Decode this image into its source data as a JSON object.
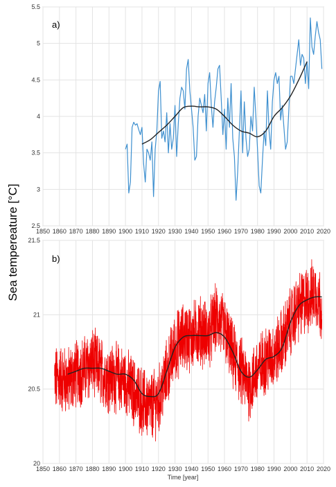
{
  "figure": {
    "ylabel": "Sea tempereature [°C]"
  },
  "colors": {
    "panel_a_series": "#3d8fcf",
    "panel_b_series": "#ee0000",
    "trend": "#222222",
    "grid": "#e3e3e3"
  },
  "chart_data": [
    {
      "type": "line",
      "panel_label": "a)",
      "xlabel": "",
      "ylabel": "",
      "xlim": [
        1850,
        2020
      ],
      "ylim": [
        2.5,
        5.5
      ],
      "xticks": [
        "1850",
        "1860",
        "1870",
        "1880",
        "1890",
        "1900",
        "1910",
        "1920",
        "1930",
        "1940",
        "1950",
        "1960",
        "1970",
        "1980",
        "1990",
        "2000",
        "2010",
        "2020"
      ],
      "yticks": [
        "2.5",
        "3",
        "3.5",
        "4",
        "4.5",
        "5",
        "5.5"
      ],
      "grid": true,
      "series": [
        {
          "x": [
            1900,
            1901,
            1902,
            1903,
            1904,
            1905,
            1906,
            1907,
            1908,
            1909,
            1910,
            1911,
            1912,
            1913,
            1914,
            1915,
            1916,
            1917,
            1918,
            1919,
            1920,
            1921,
            1922,
            1923,
            1924,
            1925,
            1926,
            1927,
            1928,
            1929,
            1930,
            1931,
            1932,
            1933,
            1934,
            1935,
            1936,
            1937,
            1938,
            1939,
            1940,
            1941,
            1942,
            1943,
            1944,
            1945,
            1946,
            1947,
            1948,
            1949,
            1950,
            1951,
            1952,
            1953,
            1954,
            1955,
            1956,
            1957,
            1958,
            1959,
            1960,
            1961,
            1962,
            1963,
            1964,
            1965,
            1966,
            1967,
            1968,
            1969,
            1970,
            1971,
            1972,
            1973,
            1974,
            1975,
            1976,
            1977,
            1978,
            1979,
            1980,
            1981,
            1982,
            1983,
            1984,
            1985,
            1986,
            1987,
            1988,
            1989,
            1990,
            1991,
            1992,
            1993,
            1994,
            1995,
            1996,
            1997,
            1998,
            1999,
            2000,
            2001,
            2002,
            2003,
            2004,
            2005,
            2006,
            2007,
            2008,
            2009,
            2010,
            2011,
            2012,
            2013,
            2014,
            2015,
            2016,
            2017,
            2018,
            2019
          ],
          "values": [
            3.55,
            3.62,
            2.95,
            3.1,
            3.85,
            3.92,
            3.88,
            3.9,
            3.82,
            3.75,
            3.85,
            3.35,
            3.1,
            3.55,
            3.5,
            3.4,
            3.65,
            2.9,
            3.55,
            3.8,
            4.35,
            4.48,
            3.7,
            3.8,
            3.65,
            4.05,
            3.5,
            3.9,
            3.55,
            3.7,
            4.15,
            3.45,
            3.9,
            4.25,
            4.4,
            4.35,
            4.1,
            4.65,
            4.78,
            4.35,
            4.1,
            3.85,
            3.4,
            3.45,
            4.0,
            4.25,
            4.15,
            4.05,
            4.3,
            3.8,
            4.45,
            4.6,
            4.15,
            3.85,
            4.2,
            4.4,
            4.65,
            4.7,
            4.25,
            3.75,
            4.1,
            3.55,
            4.25,
            3.85,
            4.45,
            3.7,
            3.45,
            2.85,
            3.25,
            3.8,
            4.35,
            3.5,
            4.2,
            3.7,
            3.45,
            3.55,
            4.0,
            3.8,
            4.4,
            4.0,
            3.55,
            3.05,
            2.95,
            3.4,
            3.8,
            3.6,
            4.35,
            3.8,
            3.55,
            4.2,
            4.5,
            4.6,
            4.45,
            4.55,
            3.95,
            4.15,
            3.85,
            3.55,
            3.65,
            4.1,
            4.55,
            4.55,
            4.45,
            4.65,
            4.85,
            5.05,
            4.7,
            4.85,
            4.8,
            4.45,
            4.75,
            4.38,
            5.35,
            4.95,
            4.85,
            5.1,
            5.3,
            5.15,
            5.05,
            4.65
          ]
        },
        {
          "name": "trend",
          "x": [
            1910,
            1915,
            1920,
            1925,
            1930,
            1935,
            1940,
            1945,
            1950,
            1955,
            1960,
            1965,
            1970,
            1975,
            1980,
            1985,
            1990,
            1995,
            2000,
            2005,
            2010
          ],
          "values": [
            3.62,
            3.68,
            3.78,
            3.88,
            4.0,
            4.12,
            4.14,
            4.13,
            4.13,
            4.1,
            4.0,
            3.88,
            3.8,
            3.77,
            3.72,
            3.8,
            4.0,
            4.12,
            4.28,
            4.5,
            4.75
          ]
        }
      ]
    },
    {
      "type": "line",
      "panel_label": "b)",
      "xlabel": "Time [year]",
      "ylabel": "",
      "xlim": [
        1850,
        2020
      ],
      "ylim": [
        20,
        21.5
      ],
      "xticks": [
        "1850",
        "1860",
        "1870",
        "1880",
        "1890",
        "1900",
        "1910",
        "1920",
        "1930",
        "1940",
        "1950",
        "1960",
        "1970",
        "1980",
        "1990",
        "2000",
        "2010",
        "2020"
      ],
      "yticks": [
        "20",
        "20.5",
        "21",
        "21.5"
      ],
      "grid": true,
      "series": [
        {
          "note_resolution": "monthly",
          "x_start": 1857.0,
          "x_end": 2019.0,
          "anchor_years": [
            1857,
            1860,
            1865,
            1870,
            1875,
            1880,
            1885,
            1890,
            1895,
            1900,
            1905,
            1910,
            1915,
            1920,
            1925,
            1930,
            1935,
            1940,
            1945,
            1950,
            1955,
            1960,
            1965,
            1970,
            1975,
            1980,
            1985,
            1990,
            1995,
            2000,
            2005,
            2010,
            2015,
            2019
          ],
          "anchor_means": [
            20.55,
            20.58,
            20.55,
            20.6,
            20.63,
            20.68,
            20.62,
            20.58,
            20.58,
            20.55,
            20.48,
            20.42,
            20.38,
            20.42,
            20.6,
            20.78,
            20.85,
            20.85,
            20.9,
            20.85,
            20.98,
            20.9,
            20.72,
            20.62,
            20.52,
            20.62,
            20.7,
            20.72,
            20.82,
            20.95,
            21.05,
            21.1,
            21.15,
            21.05
          ],
          "spread": 0.2
        },
        {
          "name": "trend",
          "x": [
            1865,
            1870,
            1875,
            1880,
            1885,
            1890,
            1895,
            1900,
            1905,
            1910,
            1915,
            1920,
            1925,
            1930,
            1935,
            1940,
            1945,
            1950,
            1955,
            1960,
            1965,
            1970,
            1975,
            1980,
            1985,
            1990,
            1995,
            2000,
            2005,
            2010,
            2015,
            2019
          ],
          "values": [
            20.6,
            20.62,
            20.64,
            20.64,
            20.64,
            20.62,
            20.6,
            20.6,
            20.56,
            20.47,
            20.45,
            20.47,
            20.62,
            20.78,
            20.85,
            20.86,
            20.86,
            20.86,
            20.88,
            20.85,
            20.75,
            20.62,
            20.58,
            20.63,
            20.7,
            20.72,
            20.78,
            20.95,
            21.06,
            21.1,
            21.12,
            21.12
          ]
        }
      ]
    }
  ]
}
